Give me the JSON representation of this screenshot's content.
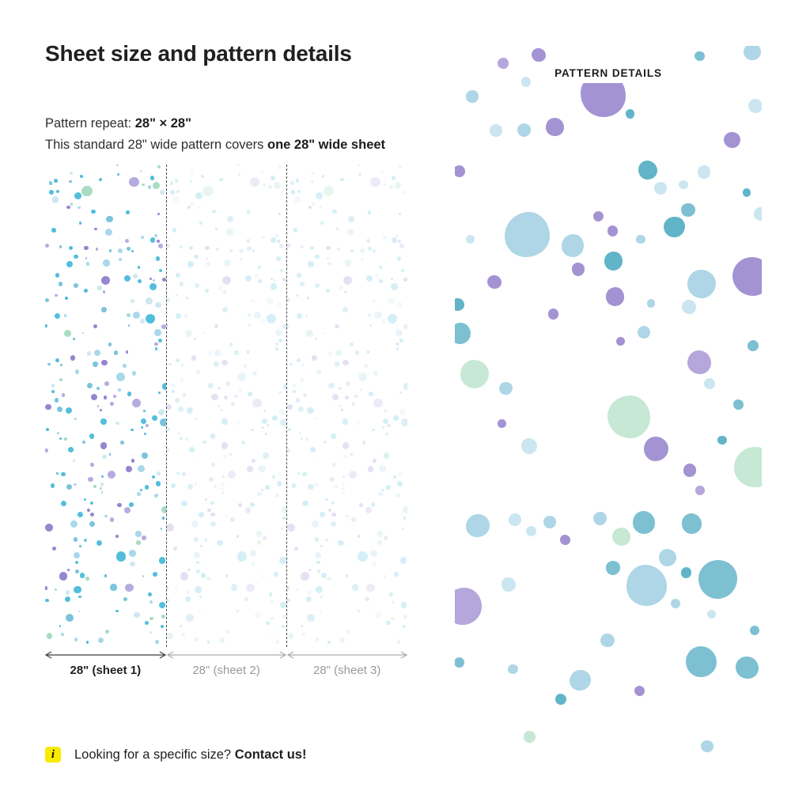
{
  "header": {
    "title": "Sheet size and pattern details"
  },
  "specs": {
    "repeat_label": "Pattern repeat: ",
    "repeat_value": "28\" × 28\"",
    "coverage_text": "This standard 28\" wide pattern covers ",
    "coverage_bold": "one 28\" wide sheet"
  },
  "diagram": {
    "sheet_labels": [
      "28\" (sheet 1)",
      "28\" (sheet 2)",
      "28\" (sheet 3)"
    ],
    "separator_color": "#4a4a4a",
    "arrow_dark_color": "#3f3f3f",
    "arrow_gray_color": "#adadad",
    "active_label_color": "#1f1f1f",
    "inactive_label_color": "#9a9a9a",
    "tile_palette": [
      {
        "color": "#52bedb",
        "w": 30
      },
      {
        "color": "#7ac4dd",
        "w": 10
      },
      {
        "color": "#a9d8ea",
        "w": 18
      },
      {
        "color": "#9486cf",
        "w": 16
      },
      {
        "color": "#b6abe0",
        "w": 10
      },
      {
        "color": "#a8dcc3",
        "w": 8
      },
      {
        "color": "#cfe8f0",
        "w": 8
      }
    ]
  },
  "pattern_panel": {
    "title": "PATTERN DETAILS",
    "palette": [
      {
        "color": "#aed6e6",
        "w": 24
      },
      {
        "color": "#7cc0d2",
        "w": 18
      },
      {
        "color": "#cbe6f0",
        "w": 15
      },
      {
        "color": "#a493d3",
        "w": 18
      },
      {
        "color": "#b5a6dc",
        "w": 6
      },
      {
        "color": "#c6e8d5",
        "w": 9
      },
      {
        "color": "#62b4c8",
        "w": 10
      }
    ]
  },
  "note": {
    "icon_bg": "#f8ea00",
    "icon_glyph": "i",
    "text": "Looking for a specific size? ",
    "cta": "Contact us!"
  }
}
